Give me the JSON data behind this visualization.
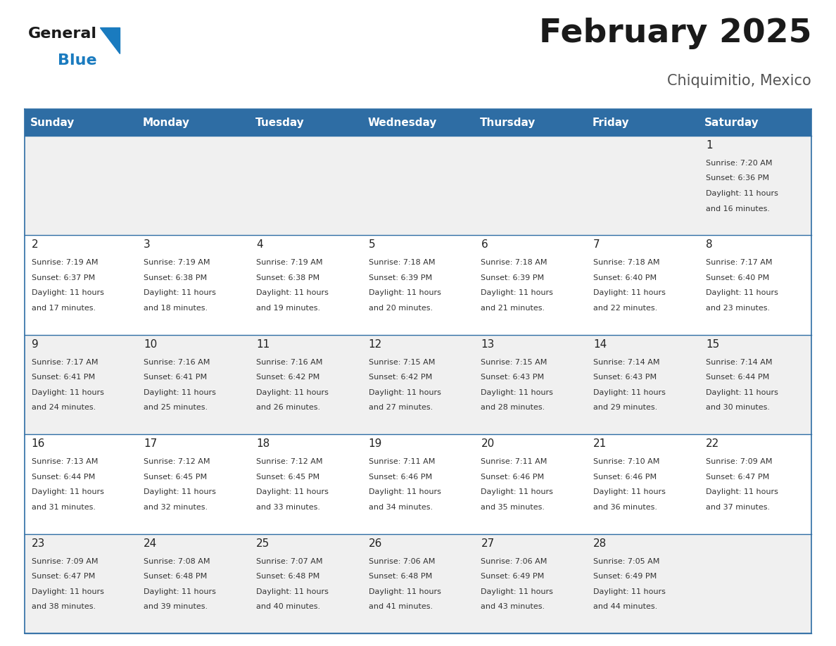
{
  "title": "February 2025",
  "subtitle": "Chiquimitio, Mexico",
  "header_bg": "#2E6DA4",
  "header_text_color": "#FFFFFF",
  "cell_bg_odd": "#F0F0F0",
  "cell_bg_even": "#FFFFFF",
  "border_color": "#2E6DA4",
  "day_headers": [
    "Sunday",
    "Monday",
    "Tuesday",
    "Wednesday",
    "Thursday",
    "Friday",
    "Saturday"
  ],
  "days": [
    {
      "day": 1,
      "col": 6,
      "row": 0,
      "sunrise": "7:20 AM",
      "sunset": "6:36 PM",
      "daylight_line1": "Daylight: 11 hours",
      "daylight_line2": "and 16 minutes."
    },
    {
      "day": 2,
      "col": 0,
      "row": 1,
      "sunrise": "7:19 AM",
      "sunset": "6:37 PM",
      "daylight_line1": "Daylight: 11 hours",
      "daylight_line2": "and 17 minutes."
    },
    {
      "day": 3,
      "col": 1,
      "row": 1,
      "sunrise": "7:19 AM",
      "sunset": "6:38 PM",
      "daylight_line1": "Daylight: 11 hours",
      "daylight_line2": "and 18 minutes."
    },
    {
      "day": 4,
      "col": 2,
      "row": 1,
      "sunrise": "7:19 AM",
      "sunset": "6:38 PM",
      "daylight_line1": "Daylight: 11 hours",
      "daylight_line2": "and 19 minutes."
    },
    {
      "day": 5,
      "col": 3,
      "row": 1,
      "sunrise": "7:18 AM",
      "sunset": "6:39 PM",
      "daylight_line1": "Daylight: 11 hours",
      "daylight_line2": "and 20 minutes."
    },
    {
      "day": 6,
      "col": 4,
      "row": 1,
      "sunrise": "7:18 AM",
      "sunset": "6:39 PM",
      "daylight_line1": "Daylight: 11 hours",
      "daylight_line2": "and 21 minutes."
    },
    {
      "day": 7,
      "col": 5,
      "row": 1,
      "sunrise": "7:18 AM",
      "sunset": "6:40 PM",
      "daylight_line1": "Daylight: 11 hours",
      "daylight_line2": "and 22 minutes."
    },
    {
      "day": 8,
      "col": 6,
      "row": 1,
      "sunrise": "7:17 AM",
      "sunset": "6:40 PM",
      "daylight_line1": "Daylight: 11 hours",
      "daylight_line2": "and 23 minutes."
    },
    {
      "day": 9,
      "col": 0,
      "row": 2,
      "sunrise": "7:17 AM",
      "sunset": "6:41 PM",
      "daylight_line1": "Daylight: 11 hours",
      "daylight_line2": "and 24 minutes."
    },
    {
      "day": 10,
      "col": 1,
      "row": 2,
      "sunrise": "7:16 AM",
      "sunset": "6:41 PM",
      "daylight_line1": "Daylight: 11 hours",
      "daylight_line2": "and 25 minutes."
    },
    {
      "day": 11,
      "col": 2,
      "row": 2,
      "sunrise": "7:16 AM",
      "sunset": "6:42 PM",
      "daylight_line1": "Daylight: 11 hours",
      "daylight_line2": "and 26 minutes."
    },
    {
      "day": 12,
      "col": 3,
      "row": 2,
      "sunrise": "7:15 AM",
      "sunset": "6:42 PM",
      "daylight_line1": "Daylight: 11 hours",
      "daylight_line2": "and 27 minutes."
    },
    {
      "day": 13,
      "col": 4,
      "row": 2,
      "sunrise": "7:15 AM",
      "sunset": "6:43 PM",
      "daylight_line1": "Daylight: 11 hours",
      "daylight_line2": "and 28 minutes."
    },
    {
      "day": 14,
      "col": 5,
      "row": 2,
      "sunrise": "7:14 AM",
      "sunset": "6:43 PM",
      "daylight_line1": "Daylight: 11 hours",
      "daylight_line2": "and 29 minutes."
    },
    {
      "day": 15,
      "col": 6,
      "row": 2,
      "sunrise": "7:14 AM",
      "sunset": "6:44 PM",
      "daylight_line1": "Daylight: 11 hours",
      "daylight_line2": "and 30 minutes."
    },
    {
      "day": 16,
      "col": 0,
      "row": 3,
      "sunrise": "7:13 AM",
      "sunset": "6:44 PM",
      "daylight_line1": "Daylight: 11 hours",
      "daylight_line2": "and 31 minutes."
    },
    {
      "day": 17,
      "col": 1,
      "row": 3,
      "sunrise": "7:12 AM",
      "sunset": "6:45 PM",
      "daylight_line1": "Daylight: 11 hours",
      "daylight_line2": "and 32 minutes."
    },
    {
      "day": 18,
      "col": 2,
      "row": 3,
      "sunrise": "7:12 AM",
      "sunset": "6:45 PM",
      "daylight_line1": "Daylight: 11 hours",
      "daylight_line2": "and 33 minutes."
    },
    {
      "day": 19,
      "col": 3,
      "row": 3,
      "sunrise": "7:11 AM",
      "sunset": "6:46 PM",
      "daylight_line1": "Daylight: 11 hours",
      "daylight_line2": "and 34 minutes."
    },
    {
      "day": 20,
      "col": 4,
      "row": 3,
      "sunrise": "7:11 AM",
      "sunset": "6:46 PM",
      "daylight_line1": "Daylight: 11 hours",
      "daylight_line2": "and 35 minutes."
    },
    {
      "day": 21,
      "col": 5,
      "row": 3,
      "sunrise": "7:10 AM",
      "sunset": "6:46 PM",
      "daylight_line1": "Daylight: 11 hours",
      "daylight_line2": "and 36 minutes."
    },
    {
      "day": 22,
      "col": 6,
      "row": 3,
      "sunrise": "7:09 AM",
      "sunset": "6:47 PM",
      "daylight_line1": "Daylight: 11 hours",
      "daylight_line2": "and 37 minutes."
    },
    {
      "day": 23,
      "col": 0,
      "row": 4,
      "sunrise": "7:09 AM",
      "sunset": "6:47 PM",
      "daylight_line1": "Daylight: 11 hours",
      "daylight_line2": "and 38 minutes."
    },
    {
      "day": 24,
      "col": 1,
      "row": 4,
      "sunrise": "7:08 AM",
      "sunset": "6:48 PM",
      "daylight_line1": "Daylight: 11 hours",
      "daylight_line2": "and 39 minutes."
    },
    {
      "day": 25,
      "col": 2,
      "row": 4,
      "sunrise": "7:07 AM",
      "sunset": "6:48 PM",
      "daylight_line1": "Daylight: 11 hours",
      "daylight_line2": "and 40 minutes."
    },
    {
      "day": 26,
      "col": 3,
      "row": 4,
      "sunrise": "7:06 AM",
      "sunset": "6:48 PM",
      "daylight_line1": "Daylight: 11 hours",
      "daylight_line2": "and 41 minutes."
    },
    {
      "day": 27,
      "col": 4,
      "row": 4,
      "sunrise": "7:06 AM",
      "sunset": "6:49 PM",
      "daylight_line1": "Daylight: 11 hours",
      "daylight_line2": "and 43 minutes."
    },
    {
      "day": 28,
      "col": 5,
      "row": 4,
      "sunrise": "7:05 AM",
      "sunset": "6:49 PM",
      "daylight_line1": "Daylight: 11 hours",
      "daylight_line2": "and 44 minutes."
    }
  ],
  "num_rows": 5,
  "num_cols": 7,
  "logo_color_general": "#1a1a1a",
  "logo_color_blue": "#1a7bbf",
  "logo_triangle_color": "#1a7bbf",
  "title_fontsize": 34,
  "subtitle_fontsize": 15,
  "header_fontsize": 11,
  "day_num_fontsize": 11,
  "cell_text_fontsize": 8
}
